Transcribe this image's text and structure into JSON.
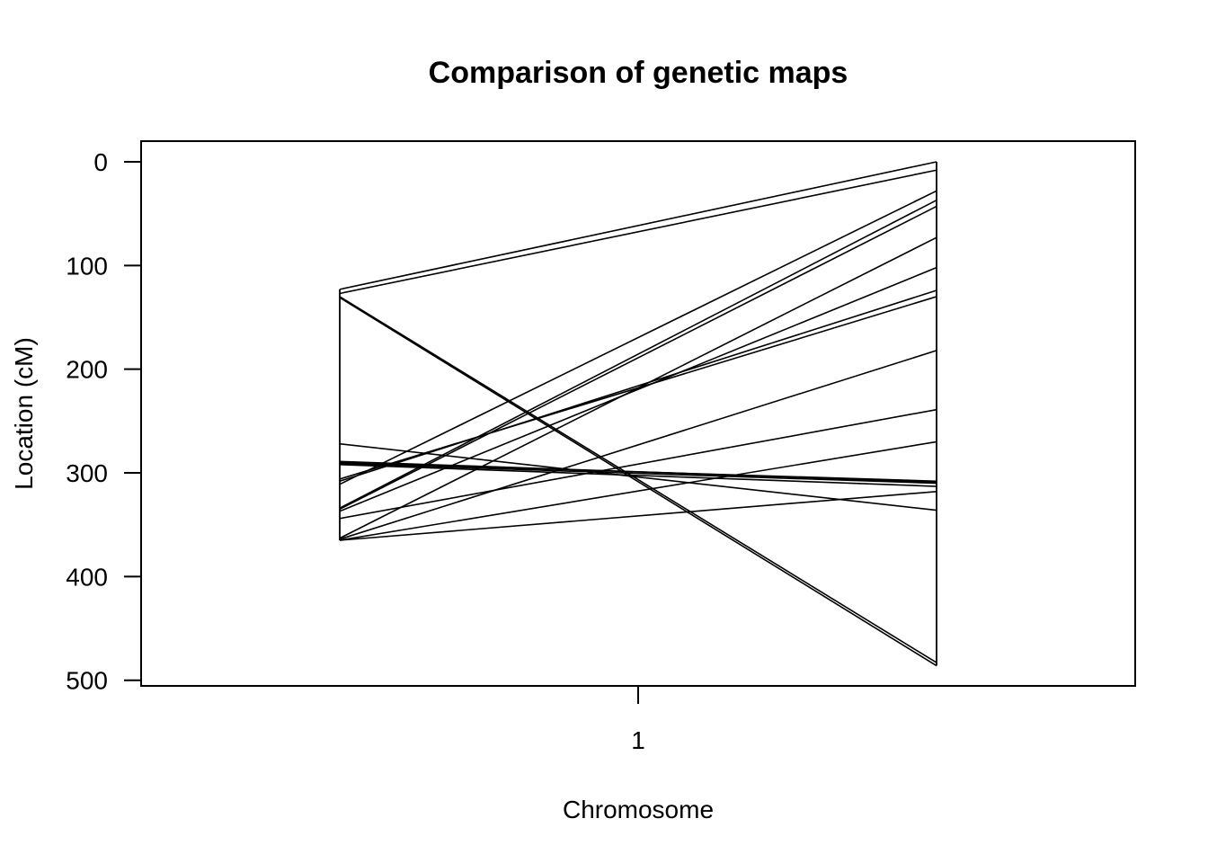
{
  "chart_data": {
    "type": "line",
    "title": "Comparison of genetic maps",
    "xlabel": "Chromosome",
    "ylabel": "Location (cM)",
    "x_categories": [
      "1"
    ],
    "ylim": [
      500,
      0
    ],
    "y_reversed": true,
    "y_ticks": [
      0,
      100,
      200,
      300,
      400,
      500
    ],
    "grid": false,
    "legend": "none",
    "line_color": "#000000",
    "segments": [
      {
        "left": 123,
        "right": 0
      },
      {
        "left": 127,
        "right": 8
      },
      {
        "left": 130,
        "right": 483
      },
      {
        "left": 131,
        "right": 486
      },
      {
        "left": 272,
        "right": 336
      },
      {
        "left": 289,
        "right": 309
      },
      {
        "left": 290,
        "right": 308
      },
      {
        "left": 291,
        "right": 310
      },
      {
        "left": 292,
        "right": 313
      },
      {
        "left": 306,
        "right": 130
      },
      {
        "left": 308,
        "right": 124
      },
      {
        "left": 311,
        "right": 28
      },
      {
        "left": 334,
        "right": 37
      },
      {
        "left": 335,
        "right": 43
      },
      {
        "left": 337,
        "right": 102
      },
      {
        "left": 344,
        "right": 239
      },
      {
        "left": 363,
        "right": 73
      },
      {
        "left": 364,
        "right": 182
      },
      {
        "left": 365,
        "right": 270
      },
      {
        "left": 365,
        "right": 318
      }
    ]
  }
}
